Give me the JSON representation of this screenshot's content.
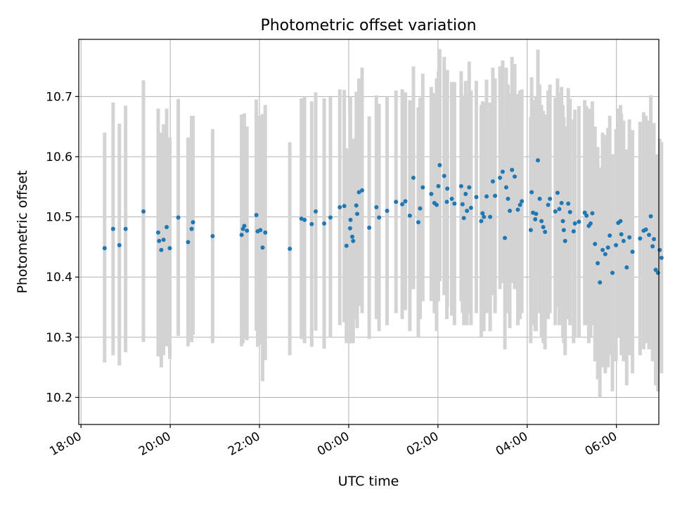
{
  "chart_data": {
    "type": "scatter",
    "title": "Photometric offset variation",
    "xlabel": "UTC time",
    "ylabel": "Photometric offset",
    "x_unit": "hours relative to 00:00 UTC",
    "xlim": [
      -6.05,
      6.95
    ],
    "ylim": [
      10.155,
      10.795
    ],
    "x_ticks": [
      {
        "v": -6,
        "label": "18:00"
      },
      {
        "v": -4,
        "label": "20:00"
      },
      {
        "v": -2,
        "label": "22:00"
      },
      {
        "v": 0,
        "label": "00:00"
      },
      {
        "v": 2,
        "label": "02:00"
      },
      {
        "v": 4,
        "label": "04:00"
      },
      {
        "v": 6,
        "label": "06:00"
      }
    ],
    "y_ticks": [
      {
        "v": 10.2,
        "label": "10.2"
      },
      {
        "v": 10.3,
        "label": "10.3"
      },
      {
        "v": 10.4,
        "label": "10.4"
      },
      {
        "v": 10.5,
        "label": "10.5"
      },
      {
        "v": 10.6,
        "label": "10.6"
      },
      {
        "v": 10.7,
        "label": "10.7"
      }
    ],
    "grid": true,
    "marker_color": "#1f77b4",
    "errorbar_color": "#d3d3d3",
    "points": [
      [
        -5.47,
        10.448,
        10.258,
        10.64
      ],
      [
        -5.28,
        10.48,
        10.27,
        10.69
      ],
      [
        -5.14,
        10.453,
        10.253,
        10.655
      ],
      [
        -5.0,
        10.48,
        10.275,
        10.685
      ],
      [
        -4.6,
        10.509,
        10.292,
        10.727
      ],
      [
        -4.27,
        10.474,
        10.268,
        10.68
      ],
      [
        -4.25,
        10.46,
        10.278,
        10.64
      ],
      [
        -4.2,
        10.445,
        10.25,
        10.64
      ],
      [
        -4.15,
        10.462,
        10.27,
        10.654
      ],
      [
        -4.08,
        10.483,
        10.285,
        10.68
      ],
      [
        -4.01,
        10.448,
        10.264,
        10.632
      ],
      [
        -3.82,
        10.499,
        10.302,
        10.696
      ],
      [
        -3.6,
        10.458,
        10.285,
        10.632
      ],
      [
        -3.52,
        10.48,
        10.292,
        10.668
      ],
      [
        -3.49,
        10.491,
        10.304,
        10.668
      ],
      [
        -3.05,
        10.468,
        10.29,
        10.646
      ],
      [
        -2.4,
        10.47,
        10.285,
        10.67
      ],
      [
        -2.37,
        10.48,
        10.29,
        10.67
      ],
      [
        -2.34,
        10.485,
        10.298,
        10.672
      ],
      [
        -2.28,
        10.477,
        10.295,
        10.65
      ],
      [
        -2.07,
        10.503,
        10.311,
        10.695
      ],
      [
        -2.04,
        10.476,
        10.284,
        10.668
      ],
      [
        -1.98,
        10.478,
        10.288,
        10.668
      ],
      [
        -1.93,
        10.449,
        10.227,
        10.671
      ],
      [
        -1.87,
        10.474,
        10.262,
        10.686
      ],
      [
        -1.32,
        10.447,
        10.27,
        10.624
      ],
      [
        -1.06,
        10.497,
        10.297,
        10.697
      ],
      [
        -0.99,
        10.495,
        10.29,
        10.7
      ],
      [
        -0.83,
        10.488,
        10.284,
        10.692
      ],
      [
        -0.74,
        10.509,
        10.311,
        10.707
      ],
      [
        -0.55,
        10.489,
        10.281,
        10.697
      ],
      [
        -0.41,
        10.499,
        10.299,
        10.699
      ],
      [
        -0.2,
        10.516,
        10.32,
        10.712
      ],
      [
        -0.1,
        10.518,
        10.325,
        10.711
      ],
      [
        -0.05,
        10.452,
        10.29,
        10.614
      ],
      [
        0.03,
        10.481,
        10.29,
        10.672
      ],
      [
        0.04,
        10.495,
        10.29,
        10.7
      ],
      [
        0.08,
        10.467,
        10.305,
        10.629
      ],
      [
        0.1,
        10.46,
        10.29,
        10.63
      ],
      [
        0.17,
        10.519,
        10.33,
        10.708
      ],
      [
        0.19,
        10.505,
        10.315,
        10.695
      ],
      [
        0.23,
        10.541,
        10.352,
        10.73
      ],
      [
        0.3,
        10.544,
        10.34,
        10.748
      ],
      [
        0.46,
        10.482,
        10.297,
        10.667
      ],
      [
        0.62,
        10.516,
        10.33,
        10.702
      ],
      [
        0.68,
        10.499,
        10.31,
        10.688
      ],
      [
        0.86,
        10.51,
        10.32,
        10.7
      ],
      [
        1.06,
        10.525,
        10.34,
        10.71
      ],
      [
        1.2,
        10.521,
        10.33,
        10.712
      ],
      [
        1.27,
        10.526,
        10.345,
        10.707
      ],
      [
        1.37,
        10.502,
        10.31,
        10.694
      ],
      [
        1.45,
        10.565,
        10.38,
        10.75
      ],
      [
        1.56,
        10.491,
        10.3,
        10.682
      ],
      [
        1.6,
        10.514,
        10.33,
        10.698
      ],
      [
        1.66,
        10.549,
        10.36,
        10.738
      ],
      [
        1.85,
        10.538,
        10.36,
        10.716
      ],
      [
        1.92,
        10.523,
        10.34,
        10.706
      ],
      [
        1.97,
        10.52,
        10.31,
        10.73
      ],
      [
        2.01,
        10.551,
        10.36,
        10.742
      ],
      [
        2.04,
        10.586,
        10.393,
        10.779
      ],
      [
        2.14,
        10.568,
        10.37,
        10.766
      ],
      [
        2.2,
        10.525,
        10.33,
        10.72
      ],
      [
        2.21,
        10.547,
        10.35,
        10.744
      ],
      [
        2.31,
        10.53,
        10.336,
        10.724
      ],
      [
        2.37,
        10.522,
        10.32,
        10.724
      ],
      [
        2.52,
        10.551,
        10.36,
        10.742
      ],
      [
        2.55,
        10.521,
        10.34,
        10.702
      ],
      [
        2.58,
        10.498,
        10.32,
        10.676
      ],
      [
        2.62,
        10.538,
        10.35,
        10.726
      ],
      [
        2.65,
        10.51,
        10.32,
        10.7
      ],
      [
        2.7,
        10.549,
        10.34,
        10.758
      ],
      [
        2.74,
        10.515,
        10.32,
        10.71
      ],
      [
        2.86,
        10.533,
        10.34,
        10.726
      ],
      [
        2.97,
        10.493,
        10.3,
        10.686
      ],
      [
        3.0,
        10.506,
        10.32,
        10.692
      ],
      [
        3.03,
        10.5,
        10.31,
        10.69
      ],
      [
        3.09,
        10.534,
        10.34,
        10.728
      ],
      [
        3.17,
        10.5,
        10.31,
        10.69
      ],
      [
        3.23,
        10.559,
        10.37,
        10.748
      ],
      [
        3.28,
        10.535,
        10.34,
        10.73
      ],
      [
        3.39,
        10.565,
        10.38,
        10.75
      ],
      [
        3.45,
        10.575,
        10.39,
        10.76
      ],
      [
        3.5,
        10.465,
        10.28,
        10.65
      ],
      [
        3.53,
        10.549,
        10.35,
        10.748
      ],
      [
        3.57,
        10.53,
        10.34,
        10.72
      ],
      [
        3.61,
        10.51,
        10.315,
        10.705
      ],
      [
        3.66,
        10.578,
        10.39,
        10.766
      ],
      [
        3.72,
        10.567,
        10.38,
        10.754
      ],
      [
        3.79,
        10.512,
        10.32,
        10.704
      ],
      [
        3.84,
        10.52,
        10.33,
        10.71
      ],
      [
        3.88,
        10.526,
        10.34,
        10.712
      ],
      [
        4.08,
        10.478,
        10.29,
        10.666
      ],
      [
        4.1,
        10.541,
        10.35,
        10.732
      ],
      [
        4.13,
        10.507,
        10.32,
        10.694
      ],
      [
        4.18,
        10.496,
        10.31,
        10.682
      ],
      [
        4.2,
        10.505,
        10.31,
        10.7
      ],
      [
        4.24,
        10.594,
        10.41,
        10.778
      ],
      [
        4.28,
        10.53,
        10.34,
        10.72
      ],
      [
        4.32,
        10.493,
        10.3,
        10.686
      ],
      [
        4.36,
        10.483,
        10.29,
        10.676
      ],
      [
        4.4,
        10.475,
        10.28,
        10.67
      ],
      [
        4.47,
        10.52,
        10.33,
        10.71
      ],
      [
        4.51,
        10.53,
        10.34,
        10.72
      ],
      [
        4.63,
        10.509,
        10.32,
        10.698
      ],
      [
        4.68,
        10.54,
        10.35,
        10.73
      ],
      [
        4.72,
        10.513,
        10.32,
        10.706
      ],
      [
        4.77,
        10.523,
        10.33,
        10.716
      ],
      [
        4.8,
        10.493,
        10.3,
        10.686
      ],
      [
        4.82,
        10.478,
        10.29,
        10.666
      ],
      [
        4.85,
        10.46,
        10.27,
        10.65
      ],
      [
        4.92,
        10.522,
        10.33,
        10.714
      ],
      [
        4.96,
        10.508,
        10.32,
        10.696
      ],
      [
        5.04,
        10.476,
        10.29,
        10.662
      ],
      [
        5.07,
        10.489,
        10.3,
        10.678
      ],
      [
        5.16,
        10.492,
        10.3,
        10.684
      ],
      [
        5.29,
        10.507,
        10.32,
        10.694
      ],
      [
        5.33,
        10.502,
        10.32,
        10.684
      ],
      [
        5.38,
        10.485,
        10.29,
        10.68
      ],
      [
        5.42,
        10.489,
        10.3,
        10.678
      ],
      [
        5.46,
        10.506,
        10.32,
        10.692
      ],
      [
        5.52,
        10.455,
        10.26,
        10.65
      ],
      [
        5.58,
        10.423,
        10.23,
        10.616
      ],
      [
        5.63,
        10.391,
        10.2,
        10.582
      ],
      [
        5.69,
        10.445,
        10.25,
        10.64
      ],
      [
        5.75,
        10.438,
        10.24,
        10.636
      ],
      [
        5.81,
        10.449,
        10.25,
        10.648
      ],
      [
        5.85,
        10.469,
        10.27,
        10.668
      ],
      [
        5.91,
        10.407,
        10.21,
        10.604
      ],
      [
        5.99,
        10.453,
        10.26,
        10.646
      ],
      [
        6.04,
        10.49,
        10.3,
        10.68
      ],
      [
        6.09,
        10.493,
        10.3,
        10.686
      ],
      [
        6.11,
        10.471,
        10.27,
        10.672
      ],
      [
        6.16,
        10.46,
        10.26,
        10.66
      ],
      [
        6.23,
        10.416,
        10.22,
        10.612
      ],
      [
        6.29,
        10.466,
        10.27,
        10.662
      ],
      [
        6.36,
        10.442,
        10.24,
        10.644
      ],
      [
        6.53,
        10.464,
        10.27,
        10.658
      ],
      [
        6.61,
        10.477,
        10.28,
        10.674
      ],
      [
        6.66,
        10.479,
        10.29,
        10.668
      ],
      [
        6.73,
        10.47,
        10.28,
        10.66
      ],
      [
        6.77,
        10.501,
        10.3,
        10.702
      ],
      [
        6.81,
        10.451,
        10.26,
        10.642
      ],
      [
        6.84,
        10.463,
        10.27,
        10.656
      ],
      [
        6.88,
        10.412,
        10.22,
        10.604
      ],
      [
        6.93,
        10.407,
        10.21,
        10.604
      ],
      [
        6.97,
        10.445,
        10.26,
        10.63
      ],
      [
        7.01,
        10.432,
        10.24,
        10.624
      ]
    ]
  }
}
